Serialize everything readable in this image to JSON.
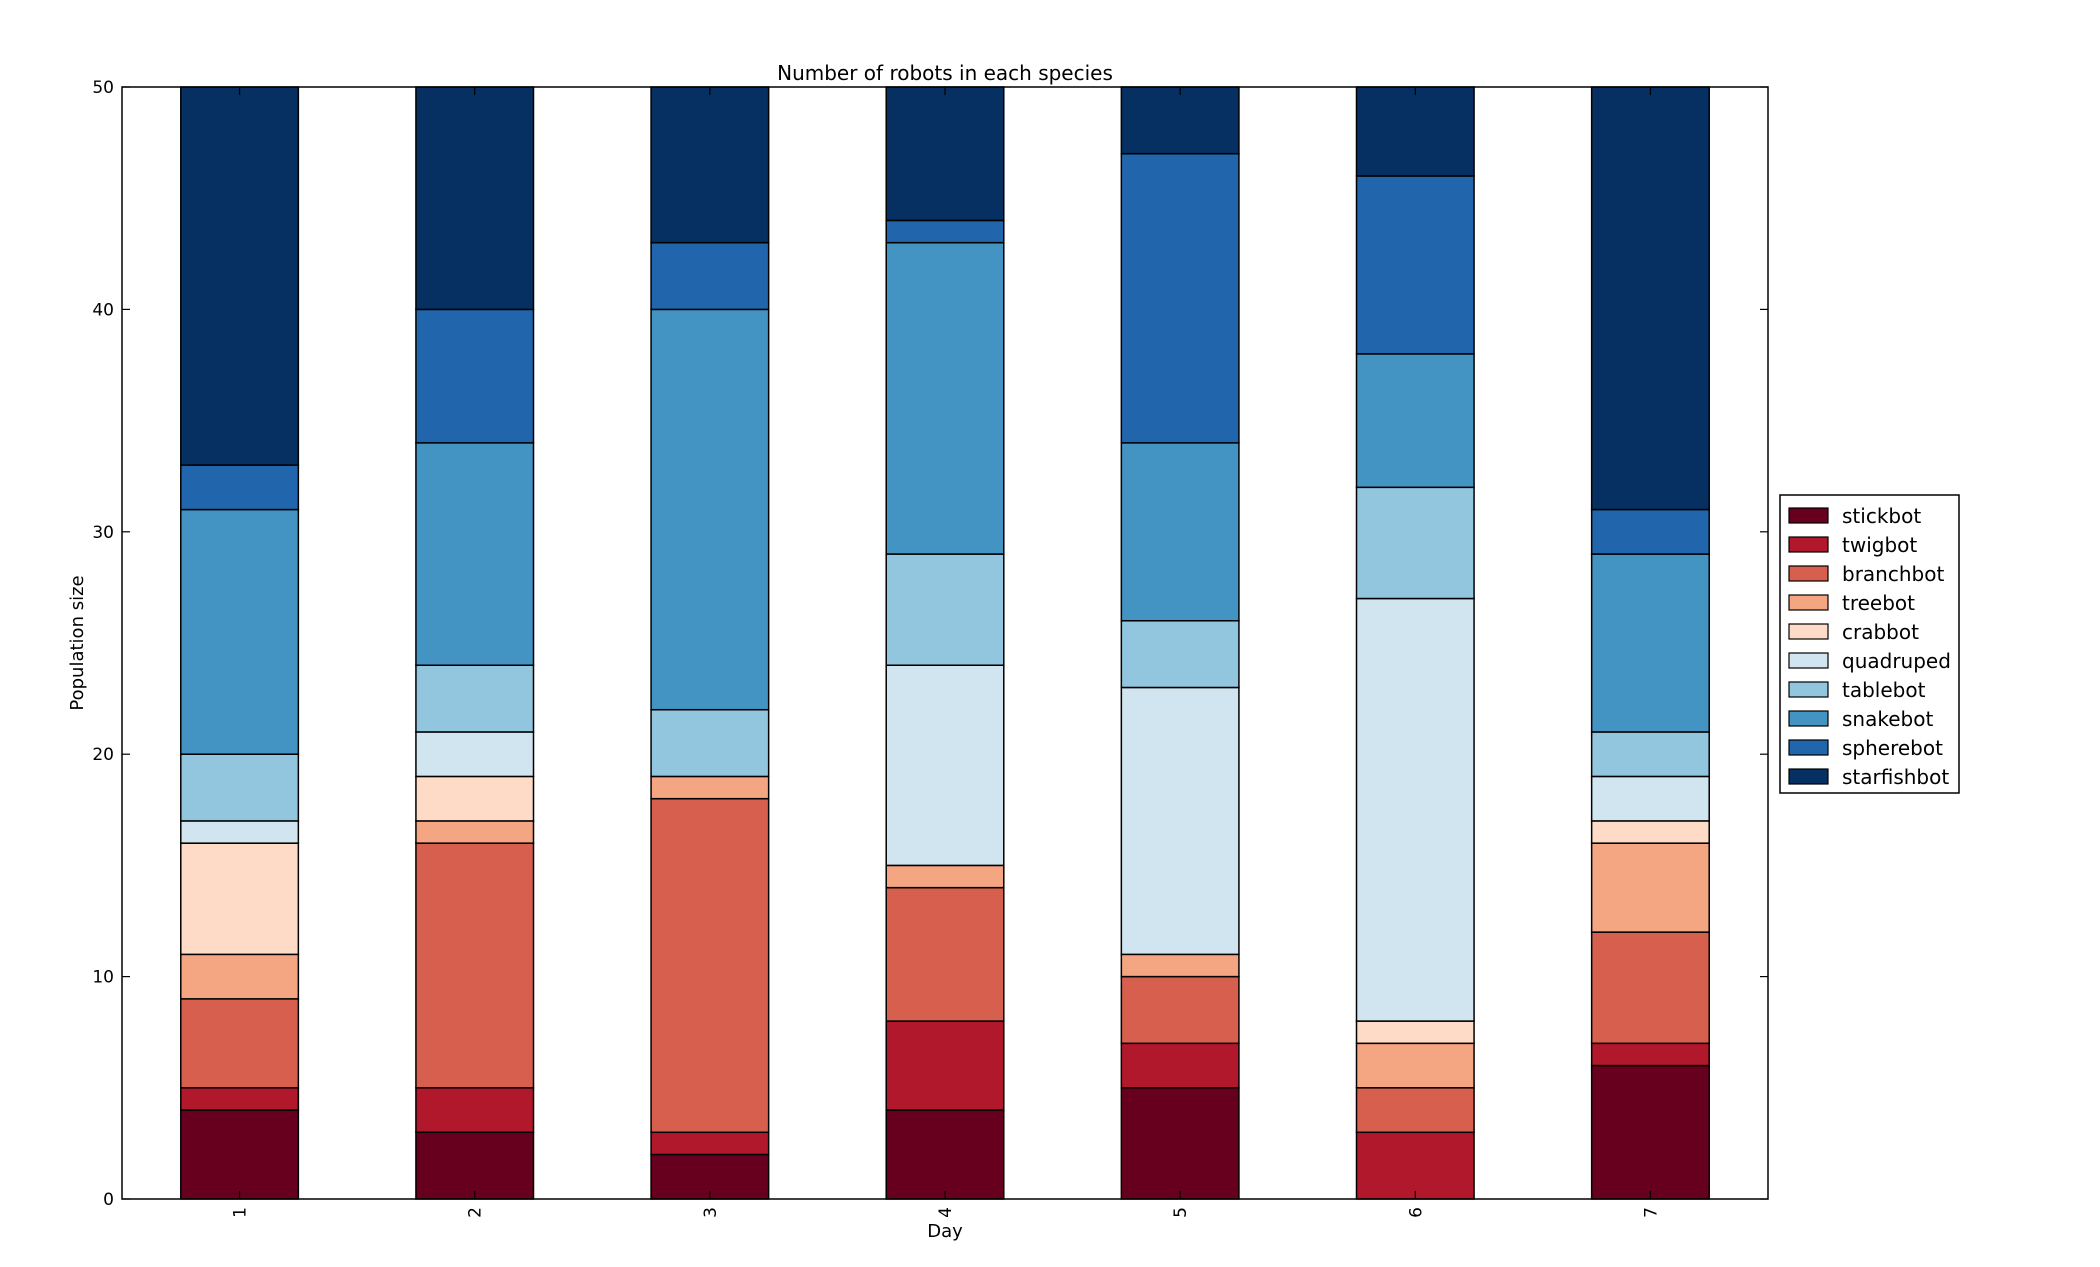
{
  "chart_data": {
    "type": "bar",
    "stacked": true,
    "title": "Number of robots in each species",
    "xlabel": "Day",
    "ylabel": "Population size",
    "ylim": [
      0,
      50
    ],
    "yticks": [
      0,
      10,
      20,
      30,
      40,
      50
    ],
    "categories": [
      "1",
      "2",
      "3",
      "4",
      "5",
      "6",
      "7"
    ],
    "grid": false,
    "legend_position": "right",
    "series": [
      {
        "name": "stickbot",
        "color": "#67001f",
        "values": [
          4,
          3,
          2,
          4,
          5,
          0,
          6
        ]
      },
      {
        "name": "twigbot",
        "color": "#b2182b",
        "values": [
          1,
          2,
          1,
          4,
          2,
          3,
          1
        ]
      },
      {
        "name": "branchbot",
        "color": "#d6604d",
        "values": [
          4,
          11,
          15,
          6,
          3,
          2,
          5
        ]
      },
      {
        "name": "treebot",
        "color": "#f4a582",
        "values": [
          2,
          1,
          1,
          1,
          1,
          2,
          4
        ]
      },
      {
        "name": "crabbot",
        "color": "#fddbc7",
        "values": [
          5,
          2,
          0,
          0,
          0,
          1,
          1
        ]
      },
      {
        "name": "quadruped",
        "color": "#d1e5f0",
        "values": [
          1,
          2,
          0,
          9,
          12,
          19,
          2
        ]
      },
      {
        "name": "tablebot",
        "color": "#92c5de",
        "values": [
          3,
          3,
          3,
          5,
          3,
          5,
          2
        ]
      },
      {
        "name": "snakebot",
        "color": "#4393c3",
        "values": [
          11,
          10,
          18,
          14,
          8,
          6,
          8
        ]
      },
      {
        "name": "spherebot",
        "color": "#2166ac",
        "values": [
          2,
          6,
          3,
          1,
          13,
          8,
          2
        ]
      },
      {
        "name": "starfishbot",
        "color": "#053061",
        "values": [
          17,
          10,
          7,
          6,
          3,
          4,
          19
        ]
      }
    ]
  }
}
